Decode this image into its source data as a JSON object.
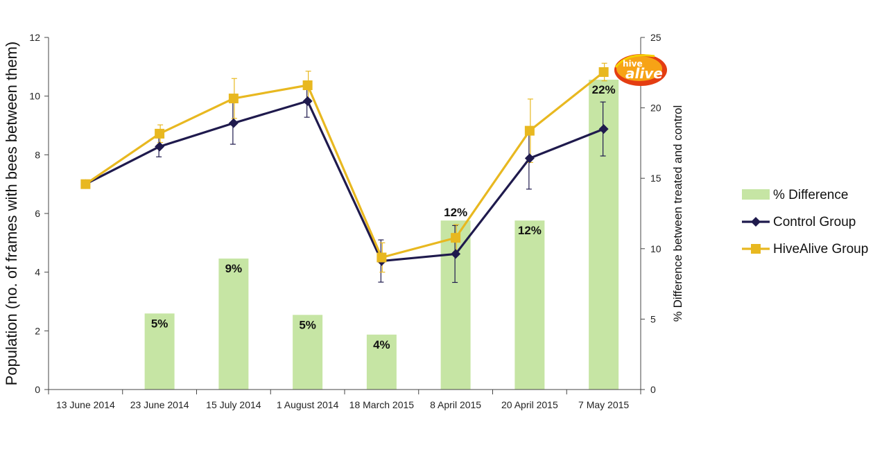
{
  "chart_data": {
    "type": "bar+line",
    "categories": [
      "13 June 2014",
      "23 June 2014",
      "15 July 2014",
      "1 August 2014",
      "18 March 2015",
      "8 April 2015",
      "20 April 2015",
      "7 May 2015"
    ],
    "ylabel": "Population (no. of frames with bees between them)",
    "ylabel_right": "% Difference between treated and control",
    "ylim": [
      0,
      12
    ],
    "yticks": [
      0,
      2,
      4,
      6,
      8,
      10,
      12
    ],
    "ylim_right": [
      0,
      25
    ],
    "yticks_right": [
      0,
      5,
      10,
      15,
      20,
      25
    ],
    "bars": {
      "name": "% Difference",
      "axis": "right",
      "color": "#c6e5a4",
      "values": [
        0,
        5.4,
        9.3,
        5.3,
        3.9,
        12,
        12,
        22
      ],
      "labels": [
        "",
        "5%",
        "9%",
        "5%",
        "4%",
        "12%",
        "12%",
        "22%"
      ]
    },
    "series": [
      {
        "name": "Control Group",
        "color": "#1f1a4d",
        "marker": "diamond",
        "values": [
          7.0,
          8.28,
          9.08,
          9.83,
          4.38,
          4.62,
          7.88,
          8.88
        ],
        "errors": [
          0.1,
          0.35,
          0.72,
          0.55,
          0.72,
          0.97,
          1.05,
          0.92
        ]
      },
      {
        "name": "HiveAlive Group",
        "color": "#e8b820",
        "marker": "square",
        "values": [
          7.0,
          8.72,
          9.92,
          10.37,
          4.5,
          5.17,
          8.82,
          10.82
        ],
        "errors": [
          0.1,
          0.3,
          0.68,
          0.48,
          0.5,
          0.45,
          1.08,
          0.3
        ]
      }
    ],
    "legend_position": "right",
    "grid": false
  },
  "logo": {
    "line1": "hive",
    "line2": "alive",
    "colors": {
      "outer": "#e43d12",
      "inner": "#f7a316",
      "text": "#ffffff",
      "gold": "#f5d000"
    }
  }
}
